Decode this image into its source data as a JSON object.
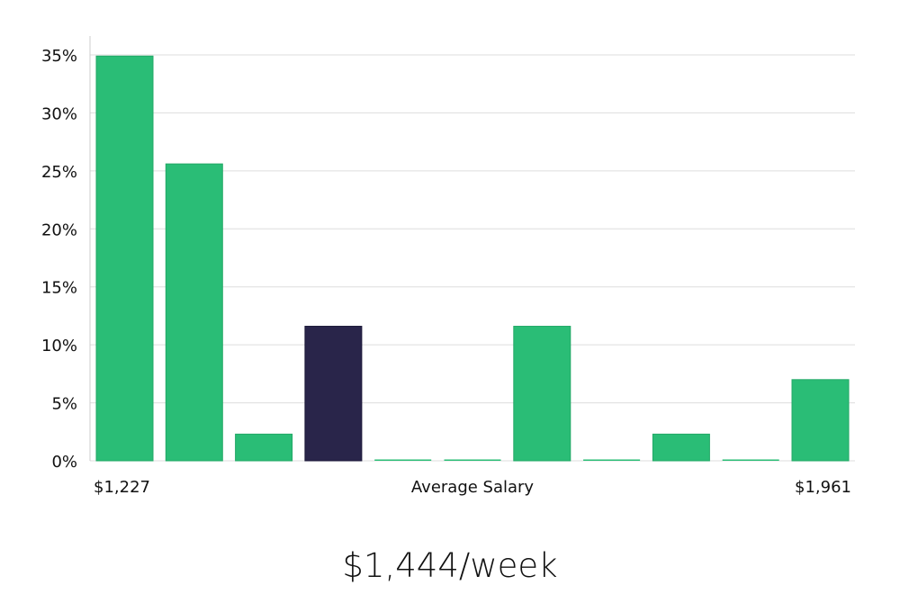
{
  "chart_data": {
    "type": "bar",
    "title": "",
    "xlabel": "Average Salary",
    "ylabel": "",
    "x_min_label": "$1,227",
    "x_max_label": "$1,961",
    "ylim": [
      0,
      35
    ],
    "yticks": [
      0,
      5,
      10,
      15,
      20,
      25,
      30,
      35
    ],
    "ytick_labels": [
      "0%",
      "5%",
      "10%",
      "15%",
      "20%",
      "25%",
      "30%",
      "35%"
    ],
    "values": [
      34.9,
      25.6,
      2.3,
      11.6,
      0,
      0,
      11.6,
      0,
      2.3,
      0,
      7.0
    ],
    "highlight_index": 3,
    "colors": {
      "bar": "#2abd76",
      "highlight": "#29254a",
      "grid": "#dddddd",
      "axis": "#cccccc"
    }
  },
  "summary": {
    "salary_text": "$1,444/week"
  }
}
